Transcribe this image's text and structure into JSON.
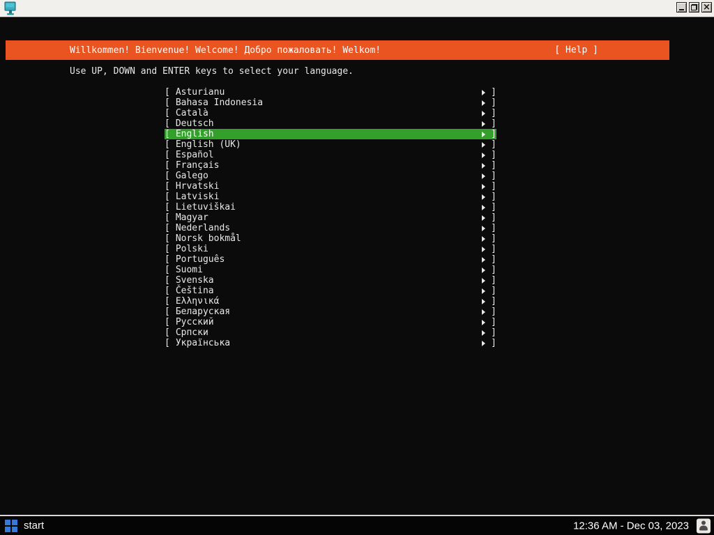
{
  "window": {
    "controls": {
      "close_glyph": "×"
    }
  },
  "installer": {
    "header": {
      "welcome": "Willkommen! Bienvenue! Welcome! Добро пожаловать! Welkom!",
      "help_label": "[ Help ]"
    },
    "instruction": "Use UP, DOWN and ENTER keys to select your language.",
    "list_style": {
      "bracket_left": "[",
      "bracket_right": "]",
      "arrow_icon": "arrow-right-triangle"
    },
    "languages": [
      "Asturianu",
      "Bahasa Indonesia",
      "Català",
      "Deutsch",
      "English",
      "English (UK)",
      "Español",
      "Français",
      "Galego",
      "Hrvatski",
      "Latviski",
      "Lietuviškai",
      "Magyar",
      "Nederlands",
      "Norsk bokmål",
      "Polski",
      "Português",
      "Suomi",
      "Svenska",
      "Čeština",
      "Ελληνικά",
      "Беларуская",
      "Русский",
      "Српски",
      "Українська"
    ],
    "selected_index": 4,
    "selected_language": "English"
  },
  "taskbar": {
    "start_label": "start",
    "clock": "12:36 AM - Dec 03, 2023"
  },
  "colors": {
    "ubuntu_orange": "#E95420",
    "selection_green": "#33A02C",
    "terminal_bg": "#0B0B0B",
    "terminal_fg": "#E8E8E6",
    "start_logo_blue": "#3579DB",
    "title_icon_teal": "#35AEC2"
  }
}
